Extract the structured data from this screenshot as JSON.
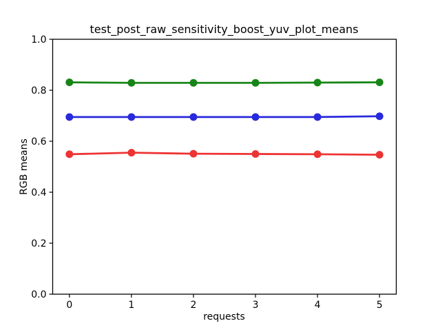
{
  "figure": {
    "background": "#ffffff",
    "frame_color": "#000000"
  },
  "chart_data": {
    "type": "line",
    "title": "test_post_raw_sensitivity_boost_yuv_plot_means",
    "xlabel": "requests",
    "ylabel": "RGB means",
    "x": [
      0,
      1,
      2,
      3,
      4,
      5
    ],
    "xlim": [
      -0.27,
      5.27
    ],
    "ylim": [
      0.0,
      1.0
    ],
    "x_ticks": [
      {
        "value": 0,
        "label": "0"
      },
      {
        "value": 1,
        "label": "1"
      },
      {
        "value": 2,
        "label": "2"
      },
      {
        "value": 3,
        "label": "3"
      },
      {
        "value": 4,
        "label": "4"
      },
      {
        "value": 5,
        "label": "5"
      }
    ],
    "y_ticks": [
      {
        "value": 0.0,
        "label": "0.0"
      },
      {
        "value": 0.2,
        "label": "0.2"
      },
      {
        "value": 0.4,
        "label": "0.4"
      },
      {
        "value": 0.6,
        "label": "0.6"
      },
      {
        "value": 0.8,
        "label": "0.8"
      },
      {
        "value": 1.0,
        "label": "1.0"
      }
    ],
    "grid": false,
    "legend": "none",
    "marker": "circle",
    "series": [
      {
        "name": "green-mean",
        "color": "#178517",
        "values": [
          0.831,
          0.829,
          0.829,
          0.829,
          0.83,
          0.831
        ]
      },
      {
        "name": "blue-mean",
        "color": "#2929dd",
        "values": [
          0.695,
          0.695,
          0.695,
          0.695,
          0.695,
          0.698
        ]
      },
      {
        "name": "red-mean",
        "color": "#ee3333",
        "values": [
          0.549,
          0.555,
          0.551,
          0.55,
          0.549,
          0.547
        ]
      }
    ]
  }
}
